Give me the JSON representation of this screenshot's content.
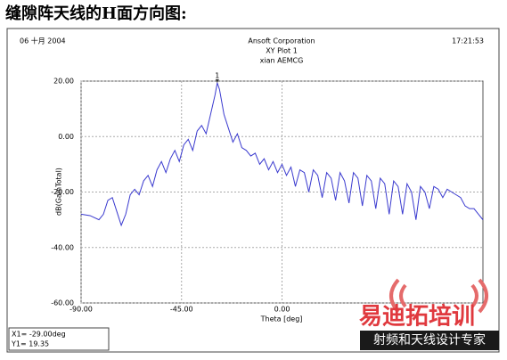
{
  "heading": "缝隙阵天线的H面方向图:",
  "chart_data": {
    "type": "line",
    "date": "06 十月 2004",
    "title": "Ansoft Corporation",
    "subtitle": "XY Plot 1",
    "subtitle2": "xian AEMCG",
    "time": "17:21:53",
    "xlabel": "Theta [deg]",
    "ylabel": "dB(GainTotal)",
    "xlim": [
      -90,
      90
    ],
    "ylim": [
      -60,
      20
    ],
    "xticks": [
      {
        "value": -90,
        "label": "-90.00"
      },
      {
        "value": -45,
        "label": "-45.00"
      },
      {
        "value": 0,
        "label": "0.00"
      }
    ],
    "yticks": [
      {
        "value": -60,
        "label": "-60.00"
      },
      {
        "value": -40,
        "label": "-40.00"
      },
      {
        "value": -20,
        "label": "-20.00"
      },
      {
        "value": 0,
        "label": "0.00"
      },
      {
        "value": 20,
        "label": "20.00"
      }
    ],
    "grid": true,
    "x": [
      -90,
      -86,
      -82,
      -80,
      -78,
      -76,
      -74,
      -72,
      -70,
      -68,
      -66,
      -64,
      -62,
      -60,
      -58,
      -56,
      -54,
      -52,
      -50,
      -48,
      -46,
      -44,
      -42,
      -40,
      -38,
      -36,
      -34,
      -32,
      -30,
      -29,
      -28,
      -26,
      -24,
      -22,
      -20,
      -18,
      -16,
      -14,
      -12,
      -10,
      -8,
      -6,
      -4,
      -2,
      0,
      2,
      4,
      6,
      8,
      10,
      12,
      14,
      16,
      18,
      20,
      22,
      24,
      26,
      28,
      30,
      32,
      34,
      36,
      38,
      40,
      42,
      44,
      46,
      48,
      50,
      52,
      54,
      56,
      58,
      60,
      62,
      64,
      66,
      68,
      70,
      72,
      74,
      76,
      78,
      80,
      82,
      84,
      86,
      88,
      90
    ],
    "series": [
      {
        "name": "dB(GainTotal)",
        "color": "#3a3acf",
        "values": [
          -28,
          -28.5,
          -30,
          -28,
          -23,
          -22,
          -27,
          -32,
          -28,
          -21,
          -19,
          -21,
          -16,
          -14,
          -18,
          -12,
          -9,
          -13,
          -8,
          -5,
          -9,
          -3,
          -1,
          -5,
          2,
          4,
          1,
          8,
          15,
          19.35,
          17,
          8,
          3,
          -2,
          1,
          -4,
          -5,
          -7,
          -6,
          -10,
          -8,
          -12,
          -9,
          -13,
          -10,
          -14,
          -11,
          -18,
          -12,
          -13,
          -20,
          -12,
          -14,
          -22,
          -13,
          -15,
          -23,
          -13,
          -16,
          -24,
          -13,
          -15,
          -25,
          -14,
          -16,
          -26,
          -15,
          -17,
          -28,
          -16,
          -18,
          -28,
          -17,
          -20,
          -30,
          -18,
          -20,
          -26,
          -18,
          -19,
          -22,
          -19,
          -20,
          -21,
          -22,
          -25,
          -26,
          -26,
          -28,
          -30
        ]
      }
    ],
    "marker": {
      "name": "1",
      "x": -29,
      "y": 19.35,
      "x_text": "X1= -29.00deg",
      "y_text": "Y1= 19.35"
    }
  },
  "watermark": {
    "title": "易迪拓培训",
    "subtitle": "射频和天线设计专家"
  }
}
